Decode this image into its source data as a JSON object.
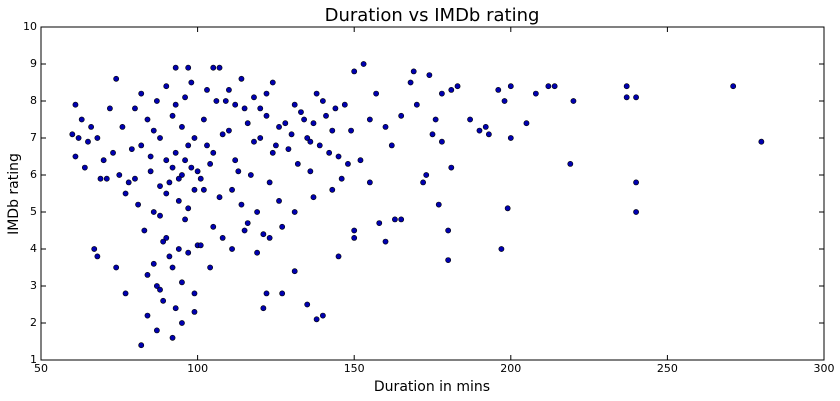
{
  "chart_data": {
    "type": "scatter",
    "title": "Duration vs IMDb rating",
    "x_label": "Duration in mins",
    "y_label": "IMDb rating",
    "xlim": [
      50,
      300
    ],
    "ylim": [
      1,
      10
    ],
    "xticks": [
      50,
      100,
      150,
      200,
      250,
      300
    ],
    "yticks": [
      1,
      2,
      3,
      4,
      5,
      6,
      7,
      8,
      9,
      10
    ],
    "grid": false,
    "color": "#0000b0",
    "x": [
      85,
      88,
      90,
      92,
      95,
      97,
      100,
      102,
      105,
      108,
      110,
      112,
      115,
      118,
      120,
      122,
      125,
      128,
      130,
      133,
      83,
      86,
      89,
      91,
      94,
      96,
      99,
      101,
      104,
      107,
      80,
      82,
      84,
      87,
      90,
      93,
      96,
      98,
      103,
      106,
      75,
      76,
      78,
      79,
      81,
      84,
      87,
      89,
      92,
      94,
      63,
      65,
      66,
      68,
      70,
      71,
      72,
      73,
      74,
      77,
      135,
      137,
      139,
      141,
      143,
      145,
      147,
      148,
      140,
      136,
      111,
      113,
      114,
      116,
      117,
      119,
      121,
      123,
      124,
      126,
      88,
      91,
      93,
      95,
      97,
      99,
      100,
      102,
      103,
      105,
      109,
      110,
      112,
      114,
      116,
      118,
      120,
      122,
      124,
      126,
      129,
      131,
      132,
      134,
      136,
      138,
      142,
      144,
      146,
      149,
      80,
      82,
      85,
      86,
      88,
      90,
      92,
      94,
      96,
      98,
      84,
      86,
      88,
      90,
      93,
      95,
      97,
      99,
      101,
      104,
      108,
      111,
      115,
      119,
      123,
      127,
      131,
      137,
      143,
      152,
      155,
      157,
      160,
      162,
      165,
      168,
      170,
      175,
      176,
      178,
      271,
      280,
      240,
      240,
      240,
      237,
      237,
      220,
      219,
      214,
      212,
      208,
      205,
      200,
      198,
      200,
      199,
      197,
      196,
      193,
      192,
      190,
      187,
      183,
      181,
      180,
      180,
      181,
      178,
      177,
      174,
      173,
      172,
      169,
      165,
      163,
      160,
      158,
      155,
      153,
      150,
      150,
      150,
      145,
      140,
      138,
      135,
      127,
      122,
      121,
      131,
      82,
      92,
      87,
      95,
      99,
      60,
      61,
      61,
      67,
      68,
      74,
      77,
      93,
      97,
      105,
      107,
      62,
      64,
      69
    ],
    "values": [
      6.5,
      7.0,
      5.5,
      6.2,
      7.3,
      6.8,
      6.1,
      7.5,
      6.6,
      7.1,
      7.2,
      6.4,
      7.8,
      6.9,
      7.0,
      7.6,
      6.8,
      7.4,
      7.1,
      7.7,
      4.5,
      5.0,
      4.2,
      3.8,
      5.3,
      4.8,
      5.6,
      5.9,
      6.3,
      5.4,
      7.8,
      8.2,
      7.5,
      8.0,
      8.4,
      7.9,
      8.1,
      8.5,
      8.3,
      8.0,
      6.0,
      7.3,
      5.8,
      6.7,
      5.2,
      3.3,
      3.0,
      2.6,
      3.5,
      4.0,
      7.5,
      6.9,
      7.3,
      7.0,
      6.4,
      5.9,
      7.8,
      6.6,
      8.6,
      5.5,
      7.0,
      7.4,
      6.8,
      7.6,
      7.2,
      6.5,
      7.9,
      6.3,
      8.0,
      6.1,
      5.6,
      6.1,
      5.2,
      4.7,
      6.0,
      5.0,
      4.4,
      5.8,
      6.6,
      5.3,
      4.9,
      5.8,
      6.6,
      6.0,
      5.1,
      7.0,
      4.1,
      5.6,
      6.8,
      4.6,
      8.0,
      8.3,
      7.9,
      8.6,
      7.4,
      8.1,
      7.8,
      8.2,
      8.5,
      7.3,
      6.7,
      7.9,
      6.3,
      7.5,
      6.9,
      8.2,
      6.6,
      7.8,
      5.9,
      7.2,
      5.9,
      6.8,
      6.1,
      7.2,
      5.7,
      6.4,
      7.6,
      5.9,
      6.4,
      6.2,
      2.2,
      3.6,
      2.9,
      4.3,
      2.4,
      3.1,
      3.9,
      2.8,
      4.1,
      3.5,
      4.3,
      4.0,
      4.5,
      3.9,
      4.3,
      4.6,
      5.0,
      5.4,
      5.6,
      6.4,
      7.5,
      8.2,
      7.3,
      6.8,
      7.6,
      8.5,
      7.9,
      7.1,
      7.5,
      6.9,
      8.4,
      6.9,
      5.0,
      5.8,
      8.1,
      8.1,
      8.4,
      8.0,
      6.3,
      8.4,
      8.4,
      8.2,
      7.4,
      8.4,
      8.0,
      7.0,
      5.1,
      4.0,
      8.3,
      7.1,
      7.3,
      7.2,
      7.5,
      8.4,
      8.3,
      4.5,
      3.7,
      6.2,
      8.2,
      5.2,
      8.7,
      6.0,
      5.8,
      8.8,
      4.8,
      4.8,
      4.2,
      4.7,
      5.8,
      9.0,
      8.8,
      4.5,
      4.3,
      3.8,
      2.2,
      2.1,
      2.5,
      2.8,
      2.8,
      2.4,
      3.4,
      1.4,
      1.6,
      1.8,
      2.0,
      2.3,
      7.1,
      6.5,
      7.9,
      4.0,
      3.8,
      3.5,
      2.8,
      8.9,
      8.9,
      8.9,
      8.9,
      7.0,
      6.2,
      5.9
    ]
  }
}
